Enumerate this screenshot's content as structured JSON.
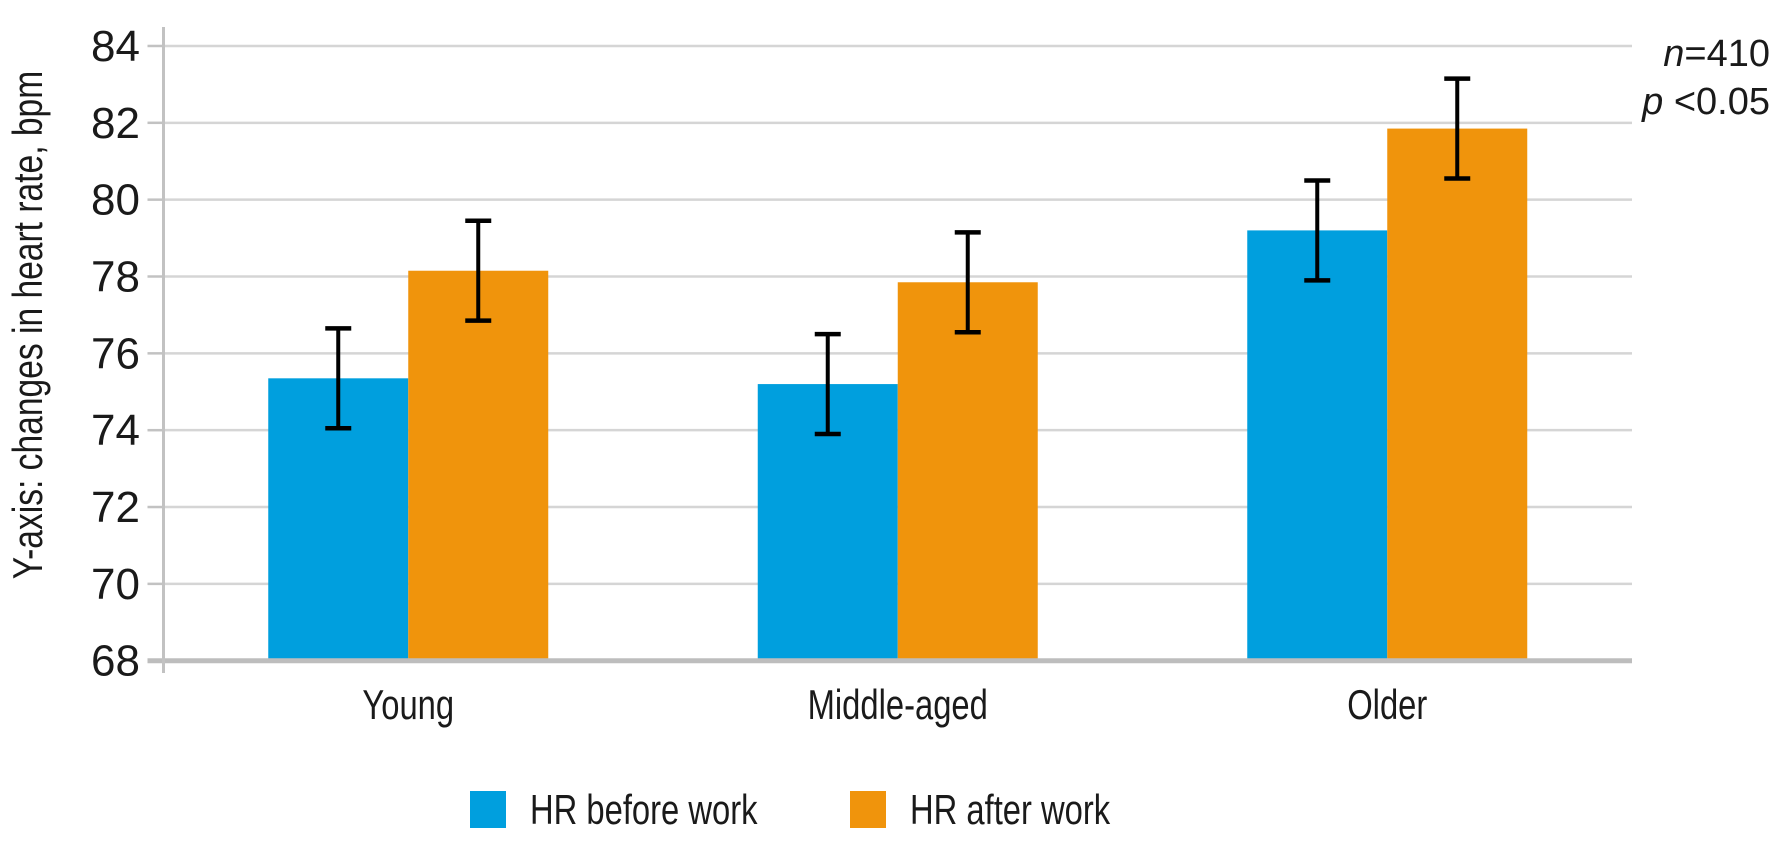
{
  "chart_data": {
    "type": "bar",
    "title": "",
    "ylabel": "Y-axis: changes in heart rate, bpm",
    "xlabel": "",
    "categories": [
      "Young",
      "Middle-aged",
      "Older"
    ],
    "series": [
      {
        "name": "HR before work",
        "color": "#009FDE",
        "values": [
          75.35,
          75.2,
          79.2
        ],
        "errors": [
          1.3,
          1.3,
          1.3
        ]
      },
      {
        "name": "HR after work",
        "color": "#F0940C",
        "values": [
          78.15,
          77.85,
          81.85
        ],
        "errors": [
          1.3,
          1.3,
          1.3
        ]
      }
    ],
    "y_axis": {
      "min": 68,
      "max": 84,
      "step": 2,
      "ticks": [
        84,
        82,
        80,
        78,
        76,
        74,
        72,
        70,
        68
      ]
    },
    "grid": true,
    "error_bars": true,
    "legend_position": "bottom",
    "annotation_lines": [
      {
        "italic": "n",
        "rest": "=410"
      },
      {
        "italic": "p",
        "rest": " <0.05"
      }
    ]
  },
  "style_colors": {
    "gridline": "#D5D5D5",
    "axis_line": "#C2C2C2",
    "baseline": "#BDBDBD",
    "error_bar": "#000000",
    "text": "#1a1a1a"
  }
}
